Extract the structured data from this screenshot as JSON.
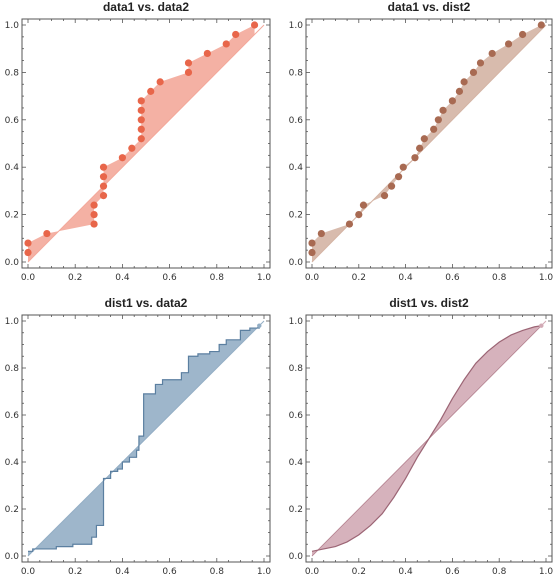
{
  "colors": {
    "panel1": "#e8664a",
    "panel1_fill": "#f3a89a",
    "panel2": "#a86a52",
    "panel2_fill": "#d4b4a4",
    "panel3": "#5b7fa0",
    "panel3_fill": "#93aec5",
    "panel4": "#9c6575",
    "panel4_fill": "#d2aab5"
  },
  "chart_data": [
    {
      "type": "scatter",
      "title": "data1 vs. data2",
      "xlim": [
        0,
        1
      ],
      "ylim": [
        0,
        1
      ],
      "xticks": [
        "0.0",
        "0.2",
        "0.4",
        "0.6",
        "0.8",
        "1.0"
      ],
      "yticks": [
        "0.0",
        "0.2",
        "0.4",
        "0.6",
        "0.8",
        "1.0"
      ],
      "grid": false,
      "filled_to_diagonal": true,
      "series": [
        {
          "values": [
            [
              0.0,
              0.04
            ],
            [
              0.0,
              0.08
            ],
            [
              0.08,
              0.12
            ],
            [
              0.28,
              0.16
            ],
            [
              0.28,
              0.2
            ],
            [
              0.28,
              0.24
            ],
            [
              0.32,
              0.28
            ],
            [
              0.32,
              0.32
            ],
            [
              0.32,
              0.36
            ],
            [
              0.32,
              0.4
            ],
            [
              0.4,
              0.44
            ],
            [
              0.44,
              0.48
            ],
            [
              0.48,
              0.52
            ],
            [
              0.48,
              0.56
            ],
            [
              0.48,
              0.6
            ],
            [
              0.48,
              0.64
            ],
            [
              0.48,
              0.68
            ],
            [
              0.52,
              0.72
            ],
            [
              0.56,
              0.76
            ],
            [
              0.68,
              0.8
            ],
            [
              0.68,
              0.84
            ],
            [
              0.76,
              0.88
            ],
            [
              0.84,
              0.92
            ],
            [
              0.88,
              0.96
            ],
            [
              0.96,
              1.0
            ]
          ]
        }
      ]
    },
    {
      "type": "scatter",
      "title": "data1 vs. dist2",
      "xlim": [
        0,
        1
      ],
      "ylim": [
        0,
        1
      ],
      "xticks": [
        "0.0",
        "0.2",
        "0.4",
        "0.6",
        "0.8",
        "1.0"
      ],
      "yticks": [
        "0.0",
        "0.2",
        "0.4",
        "0.6",
        "0.8",
        "1.0"
      ],
      "grid": false,
      "filled_to_diagonal": true,
      "series": [
        {
          "values": [
            [
              0.0,
              0.04
            ],
            [
              0.0,
              0.08
            ],
            [
              0.04,
              0.12
            ],
            [
              0.16,
              0.16
            ],
            [
              0.2,
              0.2
            ],
            [
              0.22,
              0.24
            ],
            [
              0.31,
              0.28
            ],
            [
              0.34,
              0.32
            ],
            [
              0.37,
              0.36
            ],
            [
              0.39,
              0.4
            ],
            [
              0.44,
              0.44
            ],
            [
              0.46,
              0.48
            ],
            [
              0.48,
              0.52
            ],
            [
              0.52,
              0.56
            ],
            [
              0.54,
              0.6
            ],
            [
              0.56,
              0.64
            ],
            [
              0.6,
              0.68
            ],
            [
              0.63,
              0.72
            ],
            [
              0.65,
              0.76
            ],
            [
              0.69,
              0.8
            ],
            [
              0.72,
              0.84
            ],
            [
              0.77,
              0.88
            ],
            [
              0.84,
              0.92
            ],
            [
              0.9,
              0.96
            ],
            [
              0.98,
              1.0
            ]
          ]
        }
      ]
    },
    {
      "type": "area",
      "title": "dist1 vs. data2",
      "xlim": [
        0,
        1
      ],
      "ylim": [
        0,
        1
      ],
      "xticks": [
        "0.0",
        "0.2",
        "0.4",
        "0.6",
        "0.8",
        "1.0"
      ],
      "yticks": [
        "0.0",
        "0.2",
        "0.4",
        "0.6",
        "0.8",
        "1.0"
      ],
      "grid": false,
      "filled_to_diagonal": true,
      "series": [
        {
          "values": [
            [
              0.0,
              0.02
            ],
            [
              0.02,
              0.02
            ],
            [
              0.02,
              0.03
            ],
            [
              0.12,
              0.03
            ],
            [
              0.12,
              0.04
            ],
            [
              0.19,
              0.04
            ],
            [
              0.19,
              0.05
            ],
            [
              0.27,
              0.05
            ],
            [
              0.27,
              0.08
            ],
            [
              0.29,
              0.08
            ],
            [
              0.29,
              0.13
            ],
            [
              0.32,
              0.13
            ],
            [
              0.32,
              0.33
            ],
            [
              0.35,
              0.33
            ],
            [
              0.35,
              0.36
            ],
            [
              0.38,
              0.36
            ],
            [
              0.38,
              0.37
            ],
            [
              0.4,
              0.37
            ],
            [
              0.4,
              0.4
            ],
            [
              0.43,
              0.4
            ],
            [
              0.43,
              0.42
            ],
            [
              0.46,
              0.42
            ],
            [
              0.46,
              0.45
            ],
            [
              0.47,
              0.45
            ],
            [
              0.47,
              0.51
            ],
            [
              0.49,
              0.51
            ],
            [
              0.49,
              0.69
            ],
            [
              0.54,
              0.69
            ],
            [
              0.54,
              0.73
            ],
            [
              0.57,
              0.73
            ],
            [
              0.57,
              0.75
            ],
            [
              0.65,
              0.75
            ],
            [
              0.65,
              0.78
            ],
            [
              0.68,
              0.78
            ],
            [
              0.68,
              0.85
            ],
            [
              0.72,
              0.85
            ],
            [
              0.72,
              0.86
            ],
            [
              0.77,
              0.86
            ],
            [
              0.77,
              0.87
            ],
            [
              0.81,
              0.87
            ],
            [
              0.81,
              0.9
            ],
            [
              0.84,
              0.9
            ],
            [
              0.84,
              0.92
            ],
            [
              0.9,
              0.92
            ],
            [
              0.9,
              0.96
            ],
            [
              0.94,
              0.96
            ],
            [
              0.94,
              0.97
            ],
            [
              0.98,
              0.97
            ],
            [
              0.98,
              0.98
            ]
          ]
        }
      ]
    },
    {
      "type": "area",
      "title": "dist1 vs. dist2",
      "xlim": [
        0,
        1
      ],
      "ylim": [
        0,
        1
      ],
      "xticks": [
        "0.0",
        "0.2",
        "0.4",
        "0.6",
        "0.8",
        "1.0"
      ],
      "yticks": [
        "0.0",
        "0.2",
        "0.4",
        "0.6",
        "0.8",
        "1.0"
      ],
      "grid": false,
      "filled_to_diagonal": true,
      "series": [
        {
          "values": [
            [
              0.0,
              0.02
            ],
            [
              0.05,
              0.03
            ],
            [
              0.1,
              0.04
            ],
            [
              0.15,
              0.06
            ],
            [
              0.2,
              0.09
            ],
            [
              0.25,
              0.13
            ],
            [
              0.3,
              0.18
            ],
            [
              0.35,
              0.25
            ],
            [
              0.4,
              0.33
            ],
            [
              0.45,
              0.42
            ],
            [
              0.5,
              0.5
            ],
            [
              0.55,
              0.58
            ],
            [
              0.6,
              0.67
            ],
            [
              0.65,
              0.75
            ],
            [
              0.7,
              0.82
            ],
            [
              0.75,
              0.87
            ],
            [
              0.8,
              0.91
            ],
            [
              0.85,
              0.94
            ],
            [
              0.9,
              0.96
            ],
            [
              0.95,
              0.975
            ],
            [
              0.98,
              0.98
            ]
          ]
        }
      ]
    }
  ]
}
